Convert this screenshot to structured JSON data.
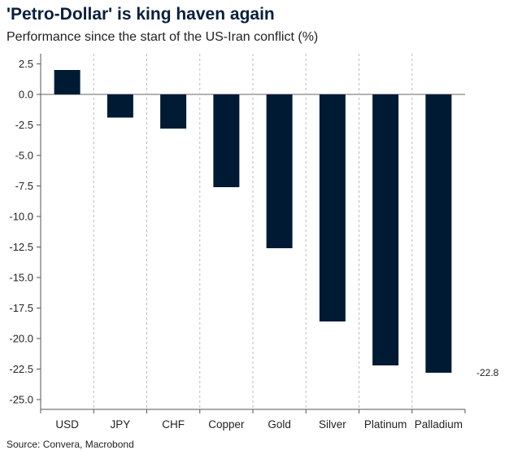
{
  "header": {
    "title": "'Petro-Dollar' is king haven again",
    "subtitle": "Performance since the start of the US-Iran conflict (%)"
  },
  "footer": {
    "source": "Source: Convera, Macrobond"
  },
  "chart_data": {
    "type": "bar",
    "title": "'Petro-Dollar' is king haven again",
    "subtitle": "Performance since the start of the US-Iran conflict (%)",
    "xlabel": "",
    "ylabel": "",
    "categories": [
      "USD",
      "JPY",
      "CHF",
      "Copper",
      "Gold",
      "Silver",
      "Platinum",
      "Palladium"
    ],
    "values": [
      2.0,
      -1.9,
      -2.8,
      -7.6,
      -12.6,
      -18.6,
      -22.2,
      -22.8
    ],
    "ylim": [
      -25.5,
      3.0
    ],
    "yticks": [
      2.5,
      0.0,
      -2.5,
      -5.0,
      -7.5,
      -10.0,
      -12.5,
      -15.0,
      -17.5,
      -20.0,
      -22.5,
      -25.0
    ],
    "ytick_labels": [
      "2.5",
      "0.0",
      "-2.5",
      "-5.0",
      "-7.5",
      "-10.0",
      "-12.5",
      "-15.0",
      "-17.5",
      "-20.0",
      "-22.5",
      "-25.0"
    ],
    "annotations": [
      {
        "category": "Palladium",
        "text": "-22.8"
      }
    ],
    "bar_color": "#001a33",
    "grid": "vertical dashed separators between categories",
    "legend": "none"
  }
}
